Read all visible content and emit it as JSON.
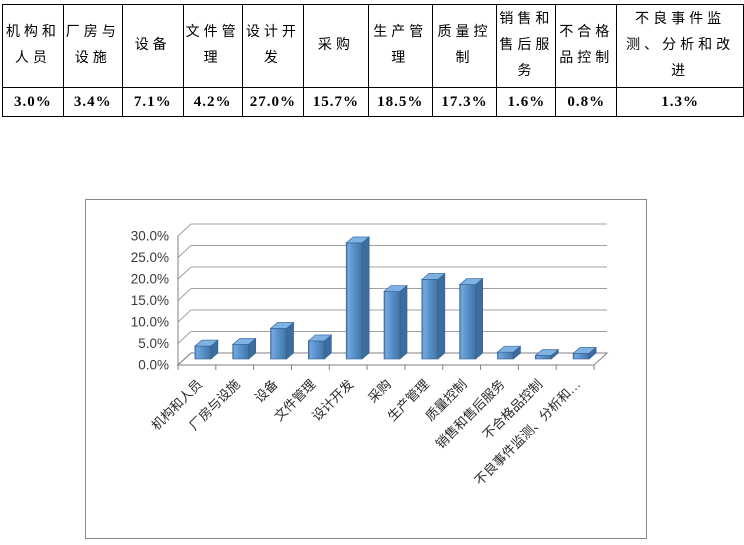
{
  "table": {
    "columns": [
      {
        "label": "机构和人员",
        "value": "3.0%"
      },
      {
        "label": "厂房与设施",
        "value": "3.4%"
      },
      {
        "label": "设备",
        "value": "7.1%"
      },
      {
        "label": "文件管理",
        "value": "4.2%"
      },
      {
        "label": "设计开发",
        "value": "27.0%"
      },
      {
        "label": "采购",
        "value": "15.7%"
      },
      {
        "label": "生产管理",
        "value": "18.5%"
      },
      {
        "label": "质量控制",
        "value": "17.3%"
      },
      {
        "label": "销售和售后服务",
        "value": "1.6%"
      },
      {
        "label": "不合格品控制",
        "value": "0.8%"
      },
      {
        "label": "不良事件监测、分析和改进",
        "value": "1.3%"
      }
    ]
  },
  "chart_data": {
    "type": "bar",
    "style": "3d-column",
    "title": "",
    "xlabel": "",
    "ylabel": "",
    "categories": [
      "机构和人员",
      "厂房与设施",
      "设备",
      "文件管理",
      "设计开发",
      "采购",
      "生产管理",
      "质量控制",
      "销售和售后服务",
      "不合格品控制",
      "不良事件监测、分析和…"
    ],
    "values": [
      3.0,
      3.4,
      7.1,
      4.2,
      27.0,
      15.7,
      18.5,
      17.3,
      1.6,
      0.8,
      1.3
    ],
    "ylim": [
      0,
      30
    ],
    "y_tick_step": 5,
    "y_tick_labels": [
      "0.0%",
      "5.0%",
      "10.0%",
      "15.0%",
      "20.0%",
      "25.0%",
      "30.0%"
    ],
    "grid": true,
    "legend": "none",
    "colors": {
      "bar_front": "#5590CB",
      "bar_front_light": "#76A7DC",
      "bar_front_dark": "#44749F",
      "bar_side": "#3C6DA0",
      "bar_top": "#7FB2E3",
      "bar_edge": "#2F5E93",
      "gridline": "#A0A0A0",
      "axis": "#808080"
    }
  }
}
